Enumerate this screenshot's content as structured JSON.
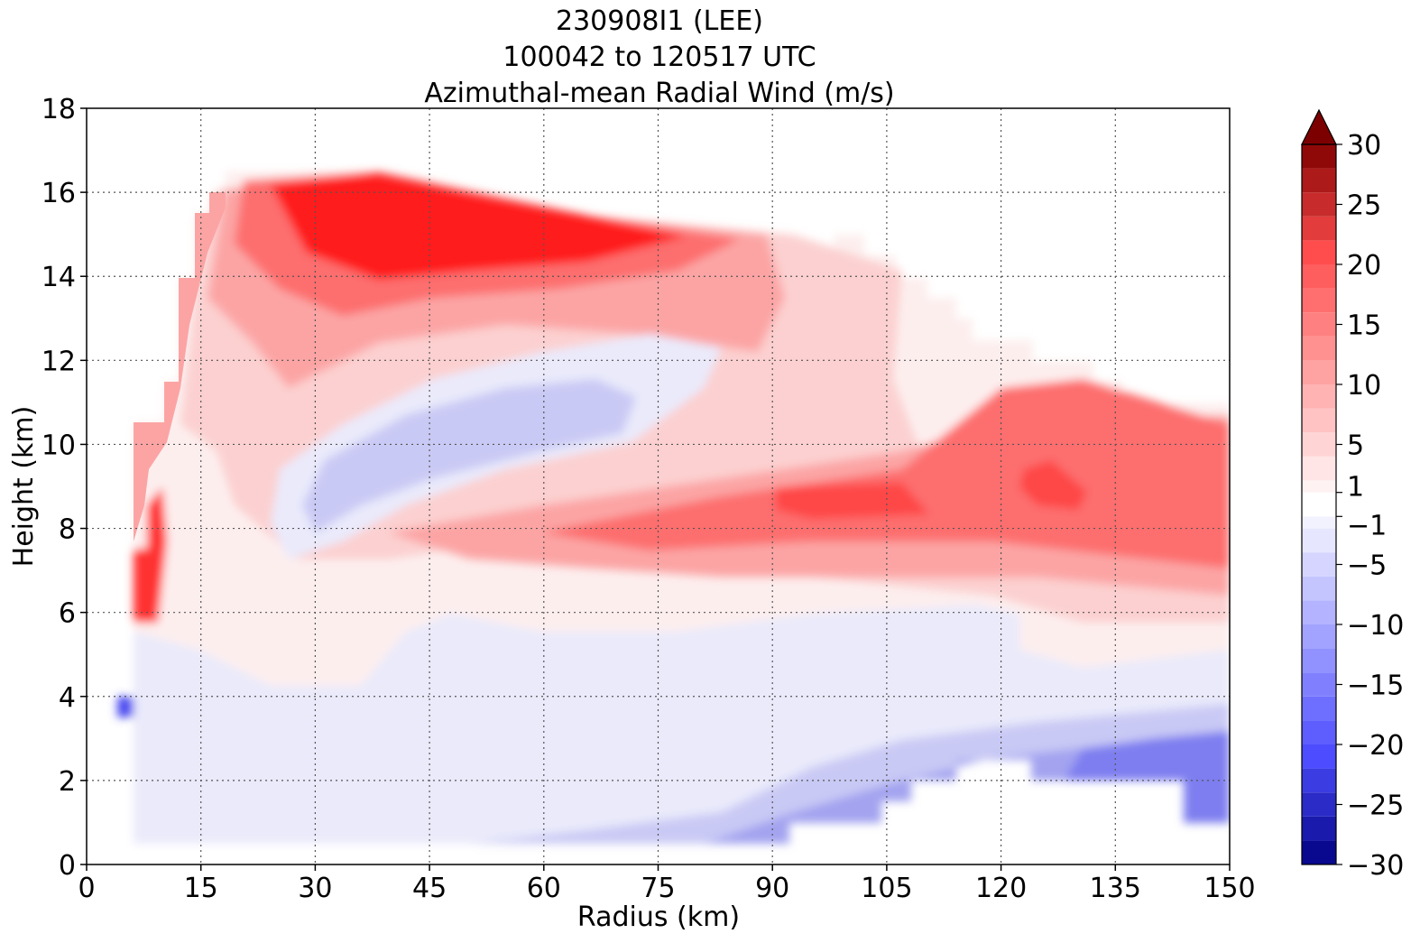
{
  "chart_data": {
    "type": "contourf",
    "title_lines": [
      "230908I1 (LEE)",
      "100042 to 120517 UTC",
      "Azimuthal-mean Radial Wind (m/s)"
    ],
    "xlabel": "Radius (km)",
    "ylabel": "Height (km)",
    "xlim": [
      0,
      150
    ],
    "ylim": [
      0,
      18
    ],
    "xticks": [
      0,
      15,
      30,
      45,
      60,
      75,
      90,
      105,
      120,
      135,
      150
    ],
    "yticks": [
      0,
      2,
      4,
      6,
      8,
      10,
      12,
      14,
      16,
      18
    ],
    "grid": true,
    "colorbar": {
      "label_ticks": [
        "30",
        "25",
        "20",
        "15",
        "10",
        "5",
        "1",
        "−1",
        "−5",
        "−10",
        "−15",
        "−20",
        "−25",
        "−30"
      ],
      "levels": [
        -30,
        -28,
        -26,
        -24,
        -22,
        -20,
        -18,
        -16,
        -14,
        -12,
        -10,
        -8,
        -6,
        -4,
        -2,
        -1,
        1,
        2,
        4,
        6,
        8,
        10,
        12,
        14,
        16,
        18,
        20,
        22,
        24,
        26,
        28,
        30
      ],
      "extend": "max",
      "cmap": "bwr"
    },
    "approximate_regions": [
      {
        "label": "upper outflow maximum",
        "radius_km": [
          22,
          70
        ],
        "height_km": [
          13.5,
          16.5
        ],
        "value_ms": 15
      },
      {
        "label": "mid-level outflow jet",
        "radius_km": [
          45,
          150
        ],
        "height_km": [
          7,
          9.5
        ],
        "value_ms": 9
      },
      {
        "label": "inner-edge outflow",
        "radius_km": [
          6,
          10
        ],
        "height_km": [
          6,
          10.5
        ],
        "value_ms": 10
      },
      {
        "label": "mid-level inflow",
        "radius_km": [
          28,
          72
        ],
        "height_km": [
          8,
          11.5
        ],
        "value_ms": -2
      },
      {
        "label": "low-level inflow",
        "radius_km": [
          95,
          150
        ],
        "height_km": [
          1,
          4
        ],
        "value_ms": -6
      }
    ]
  }
}
